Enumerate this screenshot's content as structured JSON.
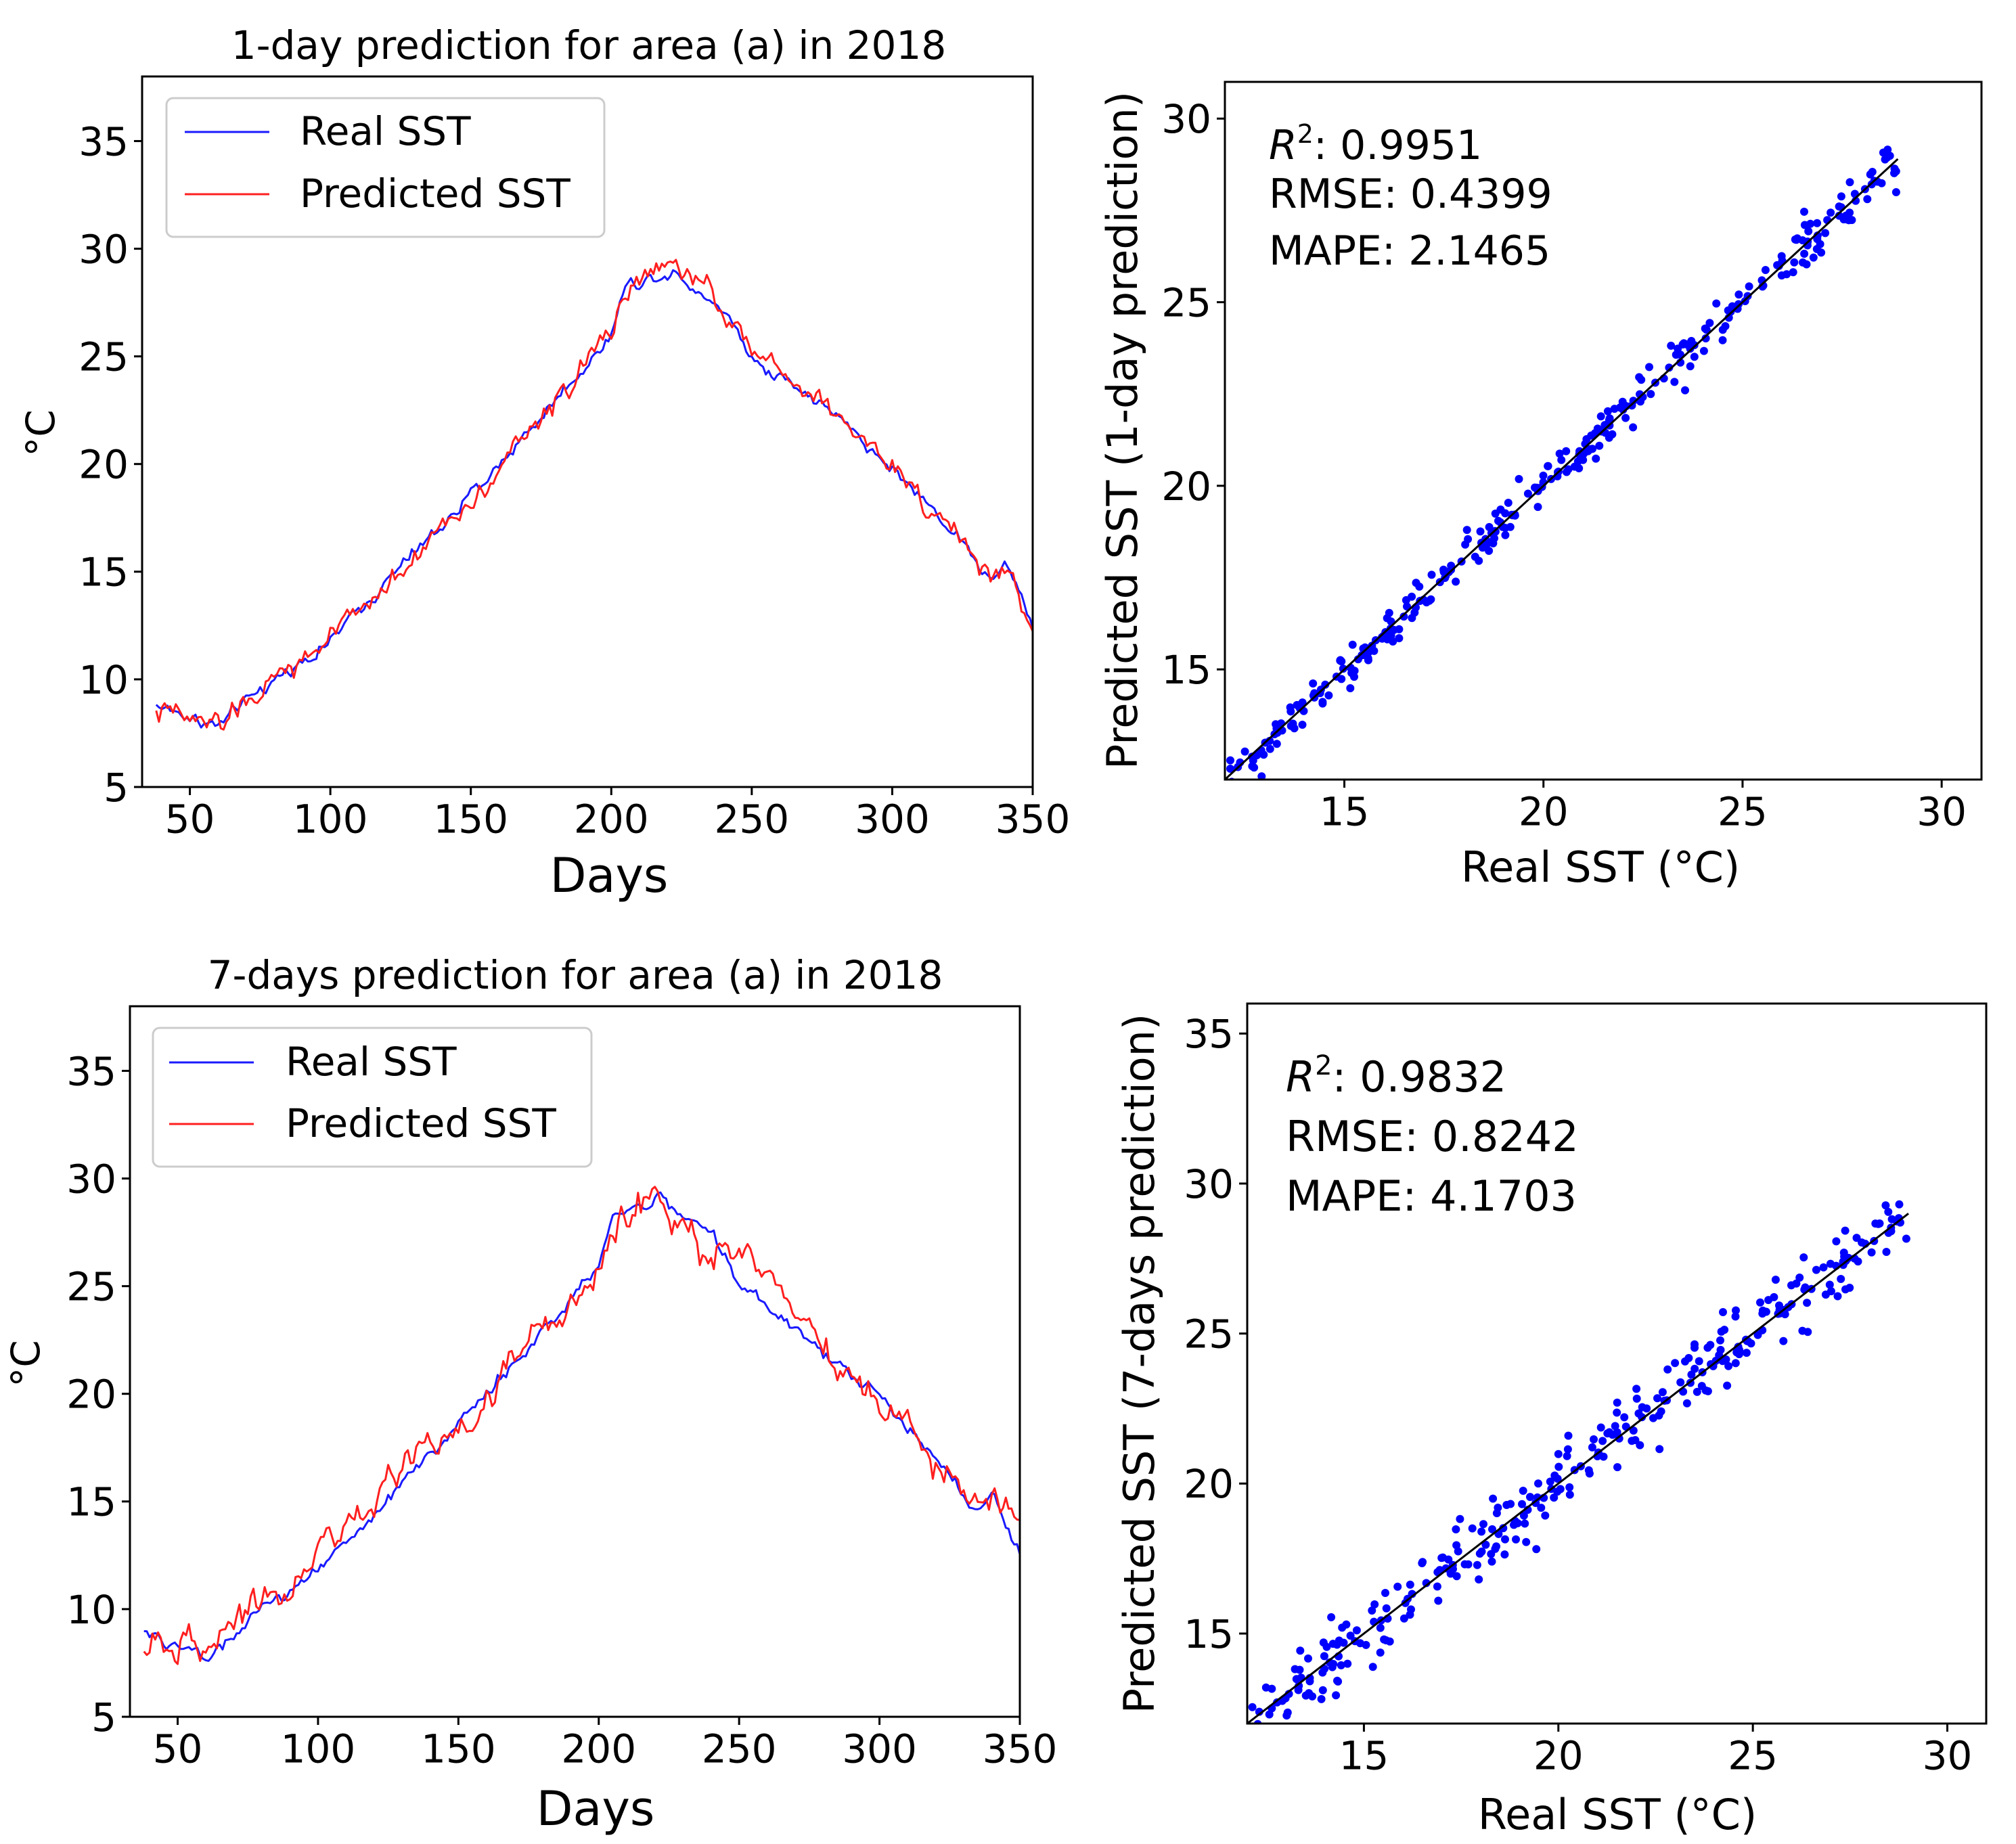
{
  "colors": {
    "real": "#1a1aff",
    "predicted": "#ff1f1f",
    "scatter": "#0000ff",
    "fit": "#000000",
    "axis": "#000000"
  },
  "chart_data": [
    {
      "id": "ts1",
      "type": "line",
      "title": "1-day prediction for area (a) in 2018",
      "xlabel": "Days",
      "ylabel": "°C",
      "xlim": [
        33,
        350
      ],
      "ylim": [
        5,
        38
      ],
      "xticks": [
        "50",
        "100",
        "150",
        "200",
        "250",
        "300",
        "350"
      ],
      "yticks": [
        "5",
        "10",
        "15",
        "20",
        "25",
        "30",
        "35"
      ],
      "legend": {
        "position": "upper-left",
        "entries": [
          "Real SST",
          "Predicted SST"
        ]
      },
      "days": [
        38,
        60,
        75,
        100,
        125,
        150,
        175,
        200,
        205,
        222,
        240,
        250,
        275,
        300,
        325,
        335,
        341,
        350
      ],
      "series": [
        {
          "name": "Real SST",
          "noise": 0.3,
          "values": [
            8.8,
            7.8,
            9.5,
            11.8,
            15.2,
            18.5,
            22.2,
            26.0,
            28.3,
            29.0,
            27.2,
            25.0,
            22.8,
            19.8,
            16.5,
            14.5,
            15.3,
            12.5
          ]
        },
        {
          "name": "Predicted SST",
          "noise": 0.55,
          "values": [
            8.5,
            7.8,
            9.4,
            11.9,
            15.0,
            18.4,
            22.1,
            26.1,
            28.3,
            29.2,
            27.4,
            25.1,
            22.9,
            19.9,
            16.6,
            14.4,
            15.1,
            12.4
          ]
        }
      ]
    },
    {
      "id": "sc1",
      "type": "scatter",
      "xlabel": "Real SST (°C)",
      "ylabel": "Predicted SST (1-day prediction)",
      "xlim": [
        12,
        31
      ],
      "ylim": [
        12,
        31
      ],
      "xticks": [
        "15",
        "20",
        "25",
        "30"
      ],
      "yticks": [
        "15",
        "20",
        "25",
        "30"
      ],
      "annotations": [
        "R",
        "2",
        ": 0.9951",
        "RMSE: 0.4399",
        "MAPE: 2.1465"
      ],
      "x_range": [
        12.1,
        28.9
      ],
      "spread": 0.42,
      "n_points": 312
    },
    {
      "id": "ts2",
      "type": "line",
      "title": "7-days prediction for area (a) in 2018",
      "xlabel": "Days",
      "ylabel": "°C",
      "xlim": [
        33,
        350
      ],
      "ylim": [
        5,
        38
      ],
      "xticks": [
        "50",
        "100",
        "150",
        "200",
        "250",
        "300",
        "350"
      ],
      "yticks": [
        "5",
        "10",
        "15",
        "20",
        "25",
        "30",
        "35"
      ],
      "legend": {
        "position": "upper-left",
        "entries": [
          "Real SST",
          "Predicted SST"
        ]
      },
      "days": [
        38,
        60,
        75,
        100,
        125,
        150,
        175,
        200,
        205,
        222,
        240,
        250,
        275,
        300,
        325,
        335,
        341,
        350
      ],
      "series": [
        {
          "name": "Real SST",
          "noise": 0.3,
          "values": [
            9.0,
            7.7,
            9.4,
            11.8,
            15.0,
            18.7,
            22.0,
            26.0,
            28.5,
            29.0,
            27.6,
            25.2,
            22.5,
            19.9,
            16.3,
            14.4,
            15.2,
            12.5
          ]
        },
        {
          "name": "Predicted SST",
          "noise": 0.8,
          "values": [
            8.6,
            8.2,
            9.8,
            12.5,
            16.0,
            18.4,
            22.3,
            25.5,
            27.5,
            29.4,
            26.8,
            26.5,
            23.2,
            19.5,
            16.4,
            14.8,
            14.9,
            14.2
          ]
        }
      ]
    },
    {
      "id": "sc2",
      "type": "scatter",
      "xlabel": "Real SST (°C)",
      "ylabel": "Predicted SST (7-days prediction)",
      "xlim": [
        12,
        31
      ],
      "ylim": [
        12,
        36
      ],
      "xticks": [
        "15",
        "20",
        "25",
        "30"
      ],
      "yticks": [
        "15",
        "20",
        "25",
        "30",
        "35"
      ],
      "annotations": [
        "R",
        "2",
        ": 0.9832",
        "RMSE: 0.8242",
        "MAPE: 4.1703"
      ],
      "x_range": [
        12.1,
        29.0
      ],
      "spread": 0.8,
      "n_points": 312
    }
  ]
}
